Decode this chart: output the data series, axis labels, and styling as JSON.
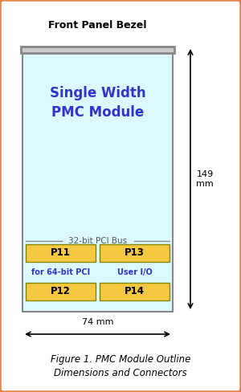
{
  "fig_width": 3.0,
  "fig_height": 4.88,
  "dpi": 100,
  "bg_color": "#FFFFFF",
  "outer_border_color": "#E8824A",
  "outer_border_lw": 2.5,
  "front_panel_bezel_text": "Front Panel Bezel",
  "front_panel_bezel_color": "#888888",
  "front_panel_bezel_lw": 2.0,
  "front_panel_bezel_text_fontsize": 9,
  "module_bg": "#DAFAFF",
  "module_border_color": "#888888",
  "module_border_lw": 1.5,
  "module_text_line1": "Single Width",
  "module_text_line2": "PMC Module",
  "module_text_color": "#3333CC",
  "module_text_fontsize": 12,
  "pci_bus_label": "32-bit PCI Bus",
  "pci_bus_label_color": "#555555",
  "pci_bus_label_fontsize": 7.5,
  "connector_color": "#F5C842",
  "connector_border_color": "#888800",
  "connector_border_lw": 1,
  "p11_label": "P11",
  "p12_label": "P12",
  "p13_label": "P13",
  "p14_label": "P14",
  "label_64bit": "for 64-bit PCI",
  "label_userio": "User I/O",
  "small_label_color": "#3333CC",
  "small_label_fontsize": 7,
  "connector_label_color": "#000000",
  "connector_label_fontsize": 8.5,
  "dim_149_label": "149\nmm",
  "dim_74_label": "74 mm",
  "dim_color": "#000000",
  "dim_fontsize": 8,
  "figure_caption": "Figure 1. PMC Module Outline\nDimensions and Connectors",
  "caption_fontsize": 8.5,
  "caption_color": "#000000"
}
